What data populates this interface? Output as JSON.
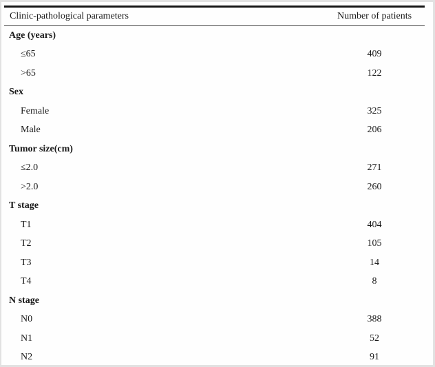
{
  "page": {
    "background": "#fefefe",
    "frame_border_color": "#e2e2e2",
    "top_rule_color": "#141414",
    "header_divider_color": "#3d3d3d",
    "text_color": "#1a1a1a"
  },
  "table": {
    "columns": {
      "parameter": "Clinic-pathological parameters",
      "value": "Number of patients"
    },
    "sections": [
      {
        "label": "Age (years)",
        "rows": [
          {
            "label": "≤65",
            "value": "409"
          },
          {
            "label": ">65",
            "value": "122"
          }
        ]
      },
      {
        "label": "Sex",
        "rows": [
          {
            "label": "Female",
            "value": "325"
          },
          {
            "label": "Male",
            "value": "206"
          }
        ]
      },
      {
        "label": "Tumor size(cm)",
        "rows": [
          {
            "label": "≤2.0",
            "value": "271"
          },
          {
            "label": ">2.0",
            "value": "260"
          }
        ]
      },
      {
        "label": "T stage",
        "rows": [
          {
            "label": "T1",
            "value": "404"
          },
          {
            "label": "T2",
            "value": "105"
          },
          {
            "label": "T3",
            "value": "14"
          },
          {
            "label": "T4",
            "value": "8"
          }
        ]
      },
      {
        "label": "N stage",
        "rows": [
          {
            "label": "N0",
            "value": "388"
          },
          {
            "label": "N1",
            "value": "52"
          },
          {
            "label": "N2",
            "value": "91"
          }
        ]
      }
    ]
  }
}
